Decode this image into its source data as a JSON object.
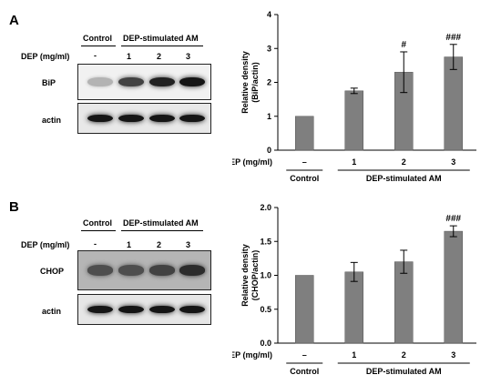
{
  "panels": [
    {
      "letter": "A",
      "header": {
        "control": "Control",
        "stimulated": "DEP-stimulated AM"
      },
      "dep_row_label": "DEP (mg/ml)",
      "dep_values": [
        "-",
        "1",
        "2",
        "3"
      ],
      "blots": [
        {
          "label": "BiP",
          "intensities": [
            0.25,
            0.75,
            0.9,
            0.95
          ]
        },
        {
          "label": "actin",
          "intensities": [
            0.95,
            0.95,
            0.95,
            0.95
          ]
        }
      ]
    },
    {
      "letter": "B",
      "header": {
        "control": "Control",
        "stimulated": "DEP-stimulated AM"
      },
      "dep_row_label": "DEP (mg/ml)",
      "dep_values": [
        "-",
        "1",
        "2",
        "3"
      ],
      "blots": [
        {
          "label": "CHOP",
          "intensities": [
            0.7,
            0.7,
            0.75,
            0.85
          ]
        },
        {
          "label": "actin",
          "intensities": [
            0.95,
            0.95,
            0.95,
            0.95
          ]
        }
      ]
    }
  ],
  "chart_data": [
    {
      "type": "bar",
      "ylabel": "Relative density\n(BiP/actin)",
      "ylim": [
        0,
        4
      ],
      "yticks": [
        "0",
        "1",
        "2",
        "3",
        "4"
      ],
      "xrow_label": "DEP (mg/ml)",
      "categories": [
        "–",
        "1",
        "2",
        "3"
      ],
      "values": [
        1.0,
        1.75,
        2.3,
        2.75
      ],
      "errors": [
        0,
        0.08,
        0.6,
        0.37
      ],
      "annotations": [
        "",
        "",
        "#",
        "###"
      ],
      "group_labels": {
        "control": "Control",
        "stimulated": "DEP-stimulated AM"
      },
      "bar_color": "#7f7f7f"
    },
    {
      "type": "bar",
      "ylabel": "Relative density\n(CHOP/actin)",
      "ylim": [
        0,
        2.0
      ],
      "yticks": [
        "0.0",
        "0.5",
        "1.0",
        "1.5",
        "2.0"
      ],
      "xrow_label": "DEP (mg/ml)",
      "categories": [
        "–",
        "1",
        "2",
        "3"
      ],
      "values": [
        1.0,
        1.05,
        1.2,
        1.65
      ],
      "errors": [
        0,
        0.14,
        0.17,
        0.08
      ],
      "annotations": [
        "",
        "",
        "",
        "###"
      ],
      "group_labels": {
        "control": "Control",
        "stimulated": "DEP-stimulated AM"
      },
      "bar_color": "#7f7f7f"
    }
  ]
}
